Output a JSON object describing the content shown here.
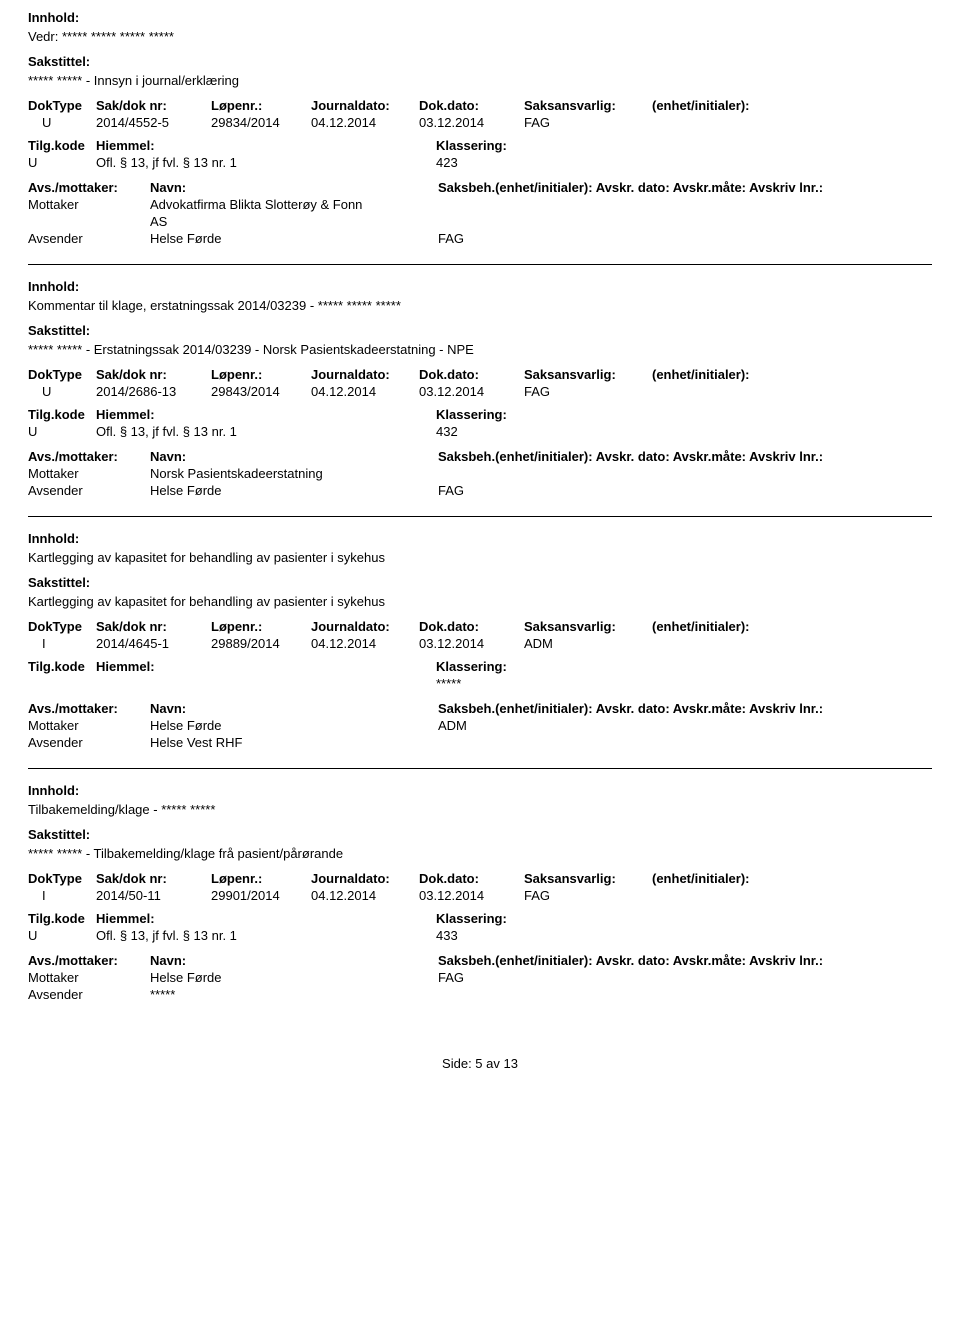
{
  "labels": {
    "innhold": "Innhold:",
    "sakstittel": "Sakstittel:",
    "doktype": "DokType",
    "saknr": "Sak/dok nr:",
    "lopenr": "Løpenr.:",
    "journaldato": "Journaldato:",
    "dokdato": "Dok.dato:",
    "saksansvarlig": "Saksansvarlig:",
    "enhet": "(enhet/initialer):",
    "tilgkode": "Tilg.kode",
    "hjemmel": "Hiemmel:",
    "klassering": "Klassering:",
    "avsmottaker": "Avs./mottaker:",
    "navn": "Navn:",
    "saksbeh": "Saksbeh.(enhet/initialer): Avskr. dato:  Avskr.måte:  Avskriv lnr.:",
    "mottaker": "Mottaker",
    "avsender": "Avsender"
  },
  "records": [
    {
      "innhold": "Vedr: ***** ***** ***** *****",
      "sakstittel": "***** ***** - Innsyn i journal/erklæring",
      "doktype": "U",
      "saknr": "2014/4552-5",
      "lopenr": "29834/2014",
      "jdato": "04.12.2014",
      "ddato": "03.12.2014",
      "ansvarlig": "FAG",
      "tilgkode": "U",
      "hjemmel": "Ofl. § 13, jf fvl. § 13 nr. 1",
      "klassering": "423",
      "parties": [
        {
          "role": "Mottaker",
          "navn_line1": "Advokatfirma Blikta Slotterøy & Fonn",
          "navn_line2": "AS",
          "saksbeh": ""
        },
        {
          "role": "Avsender",
          "navn_line1": "Helse Førde",
          "navn_line2": "",
          "saksbeh": "FAG"
        }
      ]
    },
    {
      "innhold": "Kommentar til klage, erstatningssak 2014/03239 - ***** ***** *****",
      "sakstittel": "***** ***** - Erstatningssak 2014/03239 - Norsk Pasientskadeerstatning - NPE",
      "doktype": "U",
      "saknr": "2014/2686-13",
      "lopenr": "29843/2014",
      "jdato": "04.12.2014",
      "ddato": "03.12.2014",
      "ansvarlig": "FAG",
      "tilgkode": "U",
      "hjemmel": "Ofl. § 13, jf fvl. § 13 nr. 1",
      "klassering": "432",
      "parties": [
        {
          "role": "Mottaker",
          "navn_line1": "Norsk Pasientskadeerstatning",
          "navn_line2": "",
          "saksbeh": ""
        },
        {
          "role": "Avsender",
          "navn_line1": "Helse Førde",
          "navn_line2": "",
          "saksbeh": "FAG"
        }
      ]
    },
    {
      "innhold": "Kartlegging av kapasitet for behandling av pasienter i sykehus",
      "sakstittel": "Kartlegging av kapasitet for behandling av pasienter i sykehus",
      "doktype": "I",
      "saknr": "2014/4645-1",
      "lopenr": "29889/2014",
      "jdato": "04.12.2014",
      "ddato": "03.12.2014",
      "ansvarlig": "ADM",
      "tilgkode": "",
      "hjemmel": "",
      "klassering": "*****",
      "parties": [
        {
          "role": "Mottaker",
          "navn_line1": "Helse Førde",
          "navn_line2": "",
          "saksbeh": "ADM"
        },
        {
          "role": "Avsender",
          "navn_line1": "Helse Vest RHF",
          "navn_line2": "",
          "saksbeh": ""
        }
      ]
    },
    {
      "innhold": "Tilbakemelding/klage - ***** *****",
      "sakstittel": "***** ***** - Tilbakemelding/klage frå pasient/pårørande",
      "doktype": "I",
      "saknr": "2014/50-11",
      "lopenr": "29901/2014",
      "jdato": "04.12.2014",
      "ddato": "03.12.2014",
      "ansvarlig": "FAG",
      "tilgkode": "U",
      "hjemmel": "Ofl. § 13, jf fvl. § 13 nr. 1",
      "klassering": "433",
      "parties": [
        {
          "role": "Mottaker",
          "navn_line1": "Helse Førde",
          "navn_line2": "",
          "saksbeh": "FAG"
        },
        {
          "role": "Avsender",
          "navn_line1": "*****",
          "navn_line2": "",
          "saksbeh": ""
        }
      ]
    }
  ],
  "footer": "Side: 5 av 13"
}
